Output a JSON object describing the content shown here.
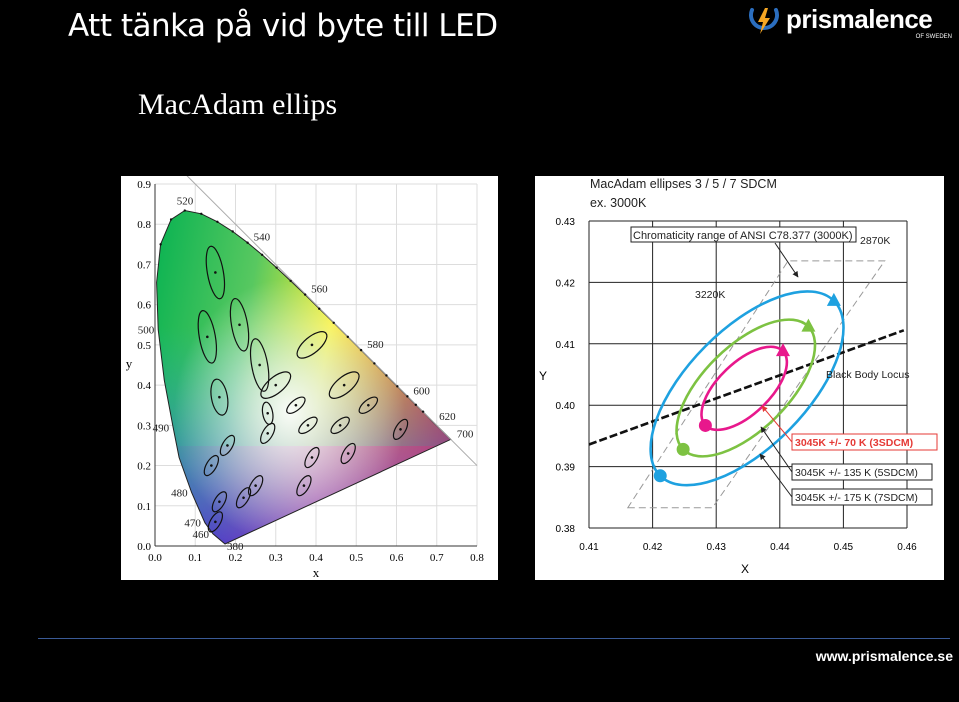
{
  "slide": {
    "title": "Att tänka på vid byte till LED",
    "subtitle": "MacAdam ellips",
    "footer_url": "www.prismalence.se"
  },
  "logo": {
    "name": "prismalence",
    "tagline": "OF SWEDEN",
    "icon": "lightning-bulb-icon"
  },
  "colors": {
    "background": "#000000",
    "footer_line": "#3a5a96",
    "logo_blue": "#2b6ebf"
  },
  "chart_data": [
    {
      "type": "scatter",
      "title": "",
      "xlabel": "x",
      "ylabel": "y",
      "xlim": [
        0.0,
        0.8
      ],
      "ylim": [
        0.0,
        0.9
      ],
      "x_ticks": [
        "0.0",
        "0.1",
        "0.2",
        "0.3",
        "0.4",
        "0.5",
        "0.6",
        "0.7",
        "0.8"
      ],
      "y_ticks": [
        "0.0",
        "0.1",
        "0.2",
        "0.3",
        "0.4",
        "0.5",
        "0.6",
        "0.7",
        "0.8",
        "0.9"
      ],
      "wavelength_labels": [
        {
          "label": "520",
          "x": 0.074,
          "y": 0.834
        },
        {
          "label": "540",
          "x": 0.23,
          "y": 0.754
        },
        {
          "label": "560",
          "x": 0.373,
          "y": 0.625
        },
        {
          "label": "580",
          "x": 0.512,
          "y": 0.487
        },
        {
          "label": "600",
          "x": 0.627,
          "y": 0.372
        },
        {
          "label": "620",
          "x": 0.691,
          "y": 0.308
        },
        {
          "label": "700",
          "x": 0.735,
          "y": 0.265
        },
        {
          "label": "500",
          "x": 0.008,
          "y": 0.538
        },
        {
          "label": "490",
          "x": 0.045,
          "y": 0.295
        },
        {
          "label": "480",
          "x": 0.091,
          "y": 0.133
        },
        {
          "label": "470",
          "x": 0.124,
          "y": 0.058
        },
        {
          "label": "460",
          "x": 0.144,
          "y": 0.03
        },
        {
          "label": "380",
          "x": 0.174,
          "y": 0.005
        }
      ],
      "ellipse_centers": [
        {
          "x": 0.15,
          "y": 0.68
        },
        {
          "x": 0.13,
          "y": 0.52
        },
        {
          "x": 0.21,
          "y": 0.55
        },
        {
          "x": 0.26,
          "y": 0.45
        },
        {
          "x": 0.39,
          "y": 0.5
        },
        {
          "x": 0.47,
          "y": 0.4
        },
        {
          "x": 0.3,
          "y": 0.4
        },
        {
          "x": 0.16,
          "y": 0.37
        },
        {
          "x": 0.28,
          "y": 0.33
        },
        {
          "x": 0.35,
          "y": 0.35
        },
        {
          "x": 0.53,
          "y": 0.35
        },
        {
          "x": 0.38,
          "y": 0.3
        },
        {
          "x": 0.46,
          "y": 0.3
        },
        {
          "x": 0.61,
          "y": 0.29
        },
        {
          "x": 0.14,
          "y": 0.2
        },
        {
          "x": 0.18,
          "y": 0.25
        },
        {
          "x": 0.28,
          "y": 0.28
        },
        {
          "x": 0.39,
          "y": 0.22
        },
        {
          "x": 0.48,
          "y": 0.23
        },
        {
          "x": 0.25,
          "y": 0.15
        },
        {
          "x": 0.16,
          "y": 0.11
        },
        {
          "x": 0.22,
          "y": 0.12
        },
        {
          "x": 0.37,
          "y": 0.15
        },
        {
          "x": 0.15,
          "y": 0.06
        }
      ]
    },
    {
      "type": "line",
      "title": "MacAdam ellipses 3  / 5 / 7 SDCM",
      "subtitle": "ex. 3000K",
      "xlabel": "X",
      "ylabel": "Y",
      "xlim": [
        0.41,
        0.46
      ],
      "ylim": [
        0.38,
        0.43
      ],
      "x_ticks": [
        "0.41",
        "0.42",
        "0.43",
        "0.44",
        "0.45",
        "0.46"
      ],
      "y_ticks": [
        "0.43",
        "0.42",
        "0.41",
        "0.40",
        "0.39",
        "0.38"
      ],
      "series": [
        {
          "name": "3045K +/-  70  K (3SDCM)",
          "color": "#e8188c",
          "start": {
            "x": 0.4283,
            "y": 0.3967
          },
          "end": {
            "x": 0.4405,
            "y": 0.4088
          }
        },
        {
          "name": "3045K +/- 135 K (5SDCM)",
          "color": "#7dc242",
          "start": {
            "x": 0.4248,
            "y": 0.3928
          },
          "end": {
            "x": 0.4445,
            "y": 0.4128
          }
        },
        {
          "name": "3045K +/- 175 K (7SDCM)",
          "color": "#1ea1e0",
          "start": {
            "x": 0.4212,
            "y": 0.3885
          },
          "end": {
            "x": 0.4485,
            "y": 0.417
          }
        },
        {
          "name": "Black Body Locus",
          "color": "#000000",
          "points": [
            {
              "x": 0.41,
              "y": 0.3936
            },
            {
              "x": 0.4595,
              "y": 0.4122
            }
          ]
        },
        {
          "name": "Chromaticity range of ANSI C78.377 (3000K)",
          "color": "#999999",
          "points": [
            {
              "x": 0.4161,
              "y": 0.3833
            },
            {
              "x": 0.4294,
              "y": 0.3833
            },
            {
              "x": 0.4565,
              "y": 0.4235
            },
            {
              "x": 0.4413,
              "y": 0.4235
            }
          ]
        }
      ],
      "annotations": [
        "Chromaticity range of ANSI C78.377 (3000K)",
        "2870K",
        "3220K",
        "Black Body Locus",
        "3045K +/-  70  K (3SDCM)",
        "3045K +/- 135 K (5SDCM)",
        "3045K +/- 175 K (7SDCM)"
      ]
    }
  ]
}
